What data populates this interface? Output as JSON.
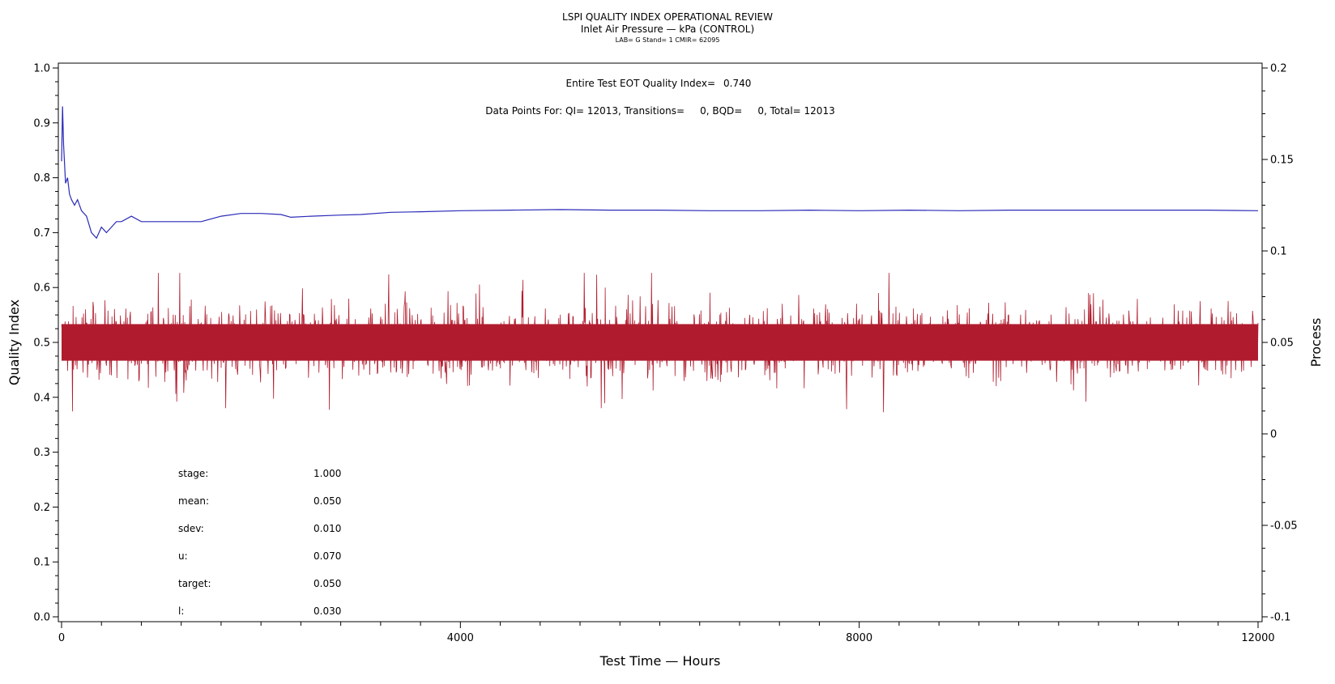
{
  "chart_data": {
    "type": "line",
    "title": "LSPI QUALITY INDEX OPERATIONAL REVIEW",
    "subtitle": "Inlet Air Pressure — kPa (CONTROL)",
    "subtitle2": "LAB= G Stand= 1 CMIR= 62095",
    "xlabel": "Test Time — Hours",
    "ylabel_left": "Quality Index",
    "ylabel_right": "Process",
    "xlim": [
      0,
      12000
    ],
    "ylim_left": [
      0.0,
      1.0
    ],
    "ylim_right": [
      -0.1,
      0.2
    ],
    "x_ticks": [
      "0",
      "4000",
      "8000",
      "12000"
    ],
    "y_left_ticks": [
      "0.0",
      "0.1",
      "0.2",
      "0.3",
      "0.4",
      "0.5",
      "0.6",
      "0.7",
      "0.8",
      "0.9",
      "1.0"
    ],
    "y_right_ticks": [
      "-0.1",
      "-0.05",
      "0",
      "0.05",
      "0.1",
      "0.15",
      "0.2"
    ],
    "grid": false,
    "annotations": {
      "eot_label": "Entire Test EOT Quality Index=",
      "eot_value": "0.740",
      "datapoints": "Data Points For: QI= 12013, Transitions=     0, BQD=     0, Total= 12013"
    },
    "stats": [
      {
        "label": "stage:",
        "value": "1.000"
      },
      {
        "label": "mean:",
        "value": "0.050"
      },
      {
        "label": "sdev:",
        "value": "0.010"
      },
      {
        "label": "u:",
        "value": "0.070"
      },
      {
        "label": "target:",
        "value": "0.050"
      },
      {
        "label": "l:",
        "value": "0.030"
      }
    ],
    "series": [
      {
        "axis": "left",
        "color": "#2a2ab8",
        "x": [
          0,
          10,
          20,
          40,
          60,
          80,
          100,
          130,
          160,
          200,
          250,
          300,
          350,
          400,
          450,
          500,
          550,
          600,
          700,
          800,
          900,
          1000,
          1100,
          1200,
          1300,
          1400,
          1600,
          1800,
          2000,
          2200,
          2300,
          2500,
          2800,
          3000,
          3300,
          3600,
          4000,
          4500,
          5000,
          5500,
          6000,
          6500,
          7000,
          7500,
          8000,
          8500,
          9000,
          9500,
          10000,
          10500,
          11000,
          11500,
          12000
        ],
        "y": [
          0.83,
          0.93,
          0.86,
          0.79,
          0.8,
          0.77,
          0.76,
          0.75,
          0.76,
          0.74,
          0.73,
          0.7,
          0.69,
          0.71,
          0.7,
          0.71,
          0.72,
          0.72,
          0.73,
          0.72,
          0.72,
          0.72,
          0.72,
          0.72,
          0.72,
          0.72,
          0.73,
          0.735,
          0.735,
          0.733,
          0.728,
          0.73,
          0.732,
          0.733,
          0.737,
          0.738,
          0.74,
          0.741,
          0.742,
          0.741,
          0.741,
          0.74,
          0.74,
          0.741,
          0.74,
          0.741,
          0.74,
          0.741,
          0.741,
          0.741,
          0.741,
          0.741,
          0.74
        ]
      },
      {
        "axis": "right",
        "color": "#b01c2e",
        "mean": 0.05,
        "sdev": 0.01,
        "count": 12013,
        "band_q10": 0.04,
        "band_q90": 0.06,
        "min": 0.007,
        "max": 0.088
      }
    ]
  }
}
